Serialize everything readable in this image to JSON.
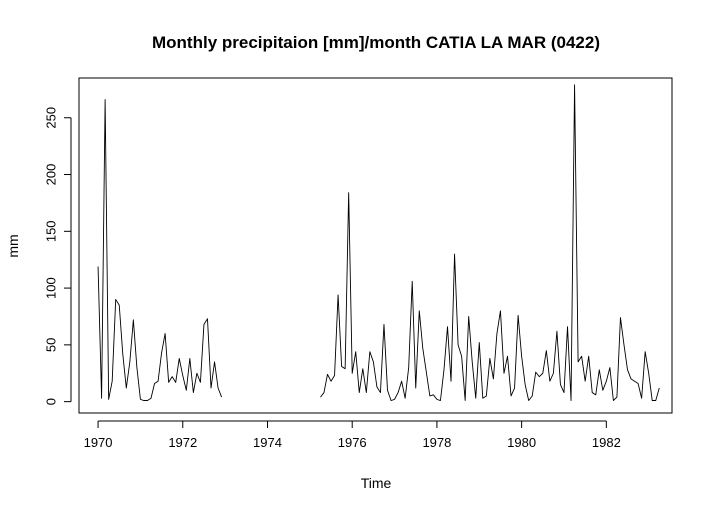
{
  "chart_data": {
    "type": "line",
    "title": "Monthly precipitaion [mm]/month CATIA LA MAR (0422)",
    "xlabel": "Time",
    "ylabel": "mm",
    "xlim": [
      1969.55,
      1983.55
    ],
    "ylim": [
      -10,
      285
    ],
    "xticks": [
      1970,
      1972,
      1974,
      1976,
      1978,
      1980,
      1982
    ],
    "yticks": [
      0,
      50,
      100,
      150,
      200,
      250
    ],
    "grid": false,
    "legend": "none",
    "line_color": "#000000",
    "series": [
      {
        "start": 1970.0,
        "step": 0.08333,
        "values": [
          119,
          3,
          266,
          2,
          18,
          90,
          85,
          42,
          12,
          35,
          72,
          30,
          2,
          1,
          1,
          3,
          16,
          18,
          43,
          60,
          17,
          22,
          17,
          38,
          23,
          10,
          38,
          8,
          25,
          17,
          68,
          73,
          12,
          35,
          12,
          4
        ]
      },
      {
        "start": 1975.25,
        "step": 0.08333,
        "values": [
          4,
          8,
          24,
          18,
          23,
          94,
          31,
          29,
          184,
          25,
          44,
          8,
          29,
          8,
          44,
          35,
          13,
          8,
          68,
          10,
          1,
          2,
          8,
          18,
          3,
          30,
          106,
          12,
          80,
          47,
          26,
          5,
          6,
          2,
          1,
          28,
          66,
          18,
          130,
          50,
          40,
          1,
          75,
          35,
          3,
          52,
          3,
          5,
          38,
          20,
          60,
          80,
          25,
          40,
          5,
          12,
          76,
          40,
          15,
          1,
          5,
          26,
          22,
          25,
          45,
          18,
          25,
          62,
          15,
          8,
          66,
          1,
          279,
          35,
          40,
          18,
          40,
          8,
          6,
          28,
          10,
          18,
          30,
          1,
          4,
          74,
          50,
          28,
          20,
          18,
          16,
          3,
          44,
          25,
          1,
          1,
          12
        ]
      }
    ]
  }
}
